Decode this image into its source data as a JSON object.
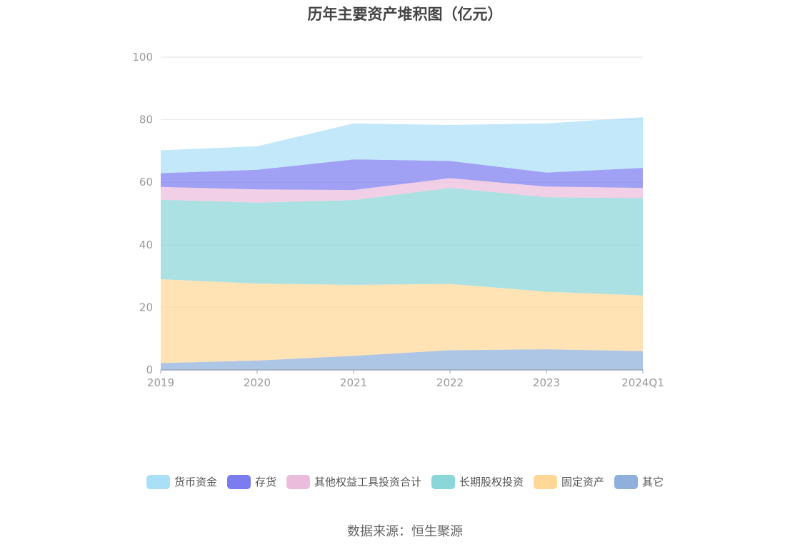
{
  "chart_data": {
    "type": "area",
    "stacked": true,
    "title": "历年主要资产堆积图（亿元）",
    "x": [
      "2019",
      "2020",
      "2021",
      "2022",
      "2023",
      "2024Q1"
    ],
    "ylim": [
      0,
      100
    ],
    "yticks": [
      0,
      20,
      40,
      60,
      80,
      100
    ],
    "grid": true,
    "legend_position": "bottom",
    "series": [
      {
        "name": "其它",
        "color": "#8fb0dc",
        "values": [
          2.2,
          3.0,
          4.5,
          6.3,
          6.6,
          6.0
        ]
      },
      {
        "name": "固定资产",
        "color": "#ffd898",
        "values": [
          26.8,
          24.6,
          22.7,
          21.2,
          18.4,
          17.8
        ]
      },
      {
        "name": "长期股权投资",
        "color": "#8ad6d8",
        "values": [
          25.4,
          25.9,
          27.1,
          30.7,
          30.2,
          31.1
        ]
      },
      {
        "name": "其他权益工具投资合计",
        "color": "#ecbcdc",
        "values": [
          4.1,
          4.2,
          3.2,
          3.1,
          3.4,
          3.3
        ]
      },
      {
        "name": "存货",
        "color": "#7b7cf0",
        "values": [
          4.4,
          6.3,
          9.8,
          5.5,
          4.5,
          6.4
        ]
      },
      {
        "name": "货币资金",
        "color": "#aadff8",
        "values": [
          7.3,
          7.5,
          11.5,
          11.5,
          15.7,
          16.2
        ]
      }
    ],
    "legend_order": [
      "货币资金",
      "存货",
      "其他权益工具投资合计",
      "长期股权投资",
      "固定资产",
      "其它"
    ]
  },
  "footer": {
    "source_note": "数据来源：恒生聚源"
  }
}
